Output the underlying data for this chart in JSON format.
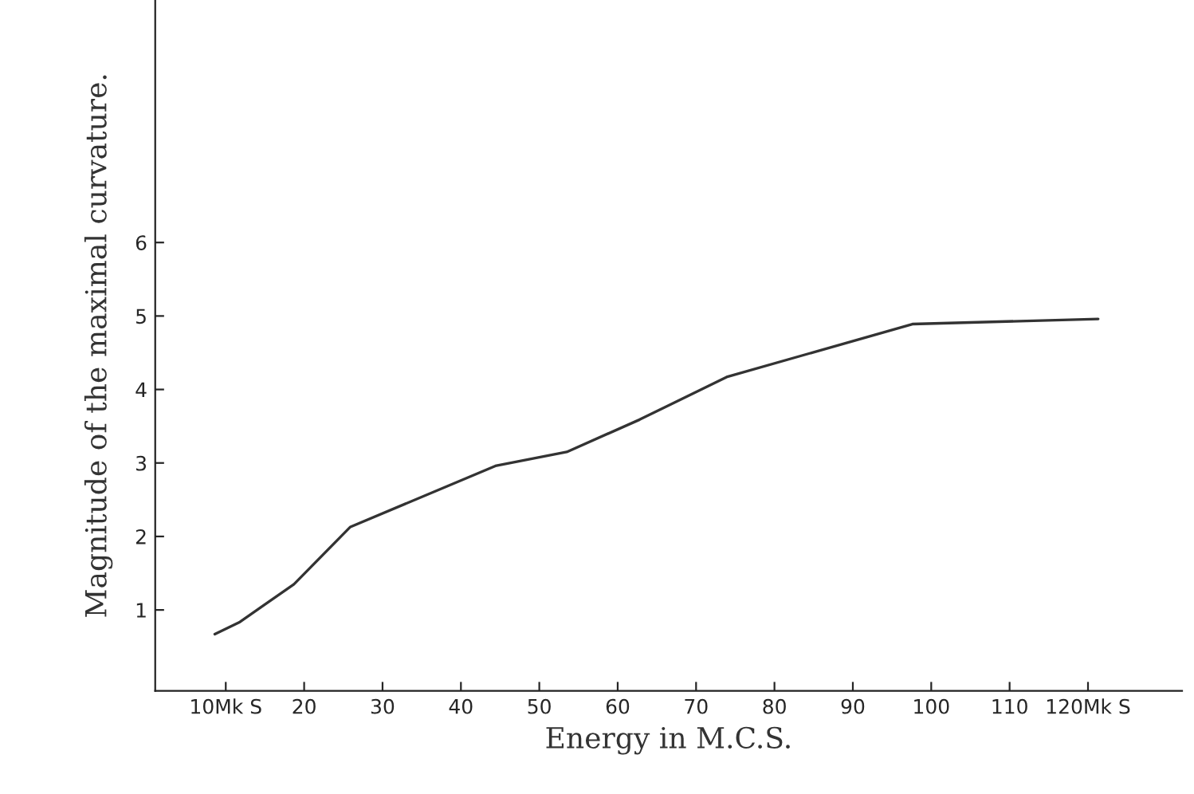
{
  "chart_data": {
    "type": "line",
    "xlabel": "Energy in M.C.S.",
    "ylabel": "Magnitude of the maximal curvature.",
    "x": [
      8.6,
      11.7,
      18.7,
      25.9,
      44.4,
      53.5,
      62.8,
      73.9,
      97.6,
      121.3
    ],
    "series": [
      {
        "color": "#333333",
        "values": [
          0.67,
          0.83,
          1.35,
          2.13,
          2.96,
          3.15,
          3.59,
          4.17,
          4.89,
          4.96
        ]
      }
    ],
    "xlim": [
      1,
      132
    ],
    "ylim": [
      -0.1,
      9.3
    ],
    "xticks": [
      {
        "value": 10,
        "label": "10Mk S"
      },
      20,
      30,
      40,
      50,
      60,
      70,
      80,
      90,
      100,
      110,
      {
        "value": 120,
        "label": "120Mk S"
      }
    ],
    "yticks": [
      1,
      2,
      3,
      4,
      5,
      6
    ],
    "grid": false,
    "marker": "none",
    "line_style": "solid"
  }
}
